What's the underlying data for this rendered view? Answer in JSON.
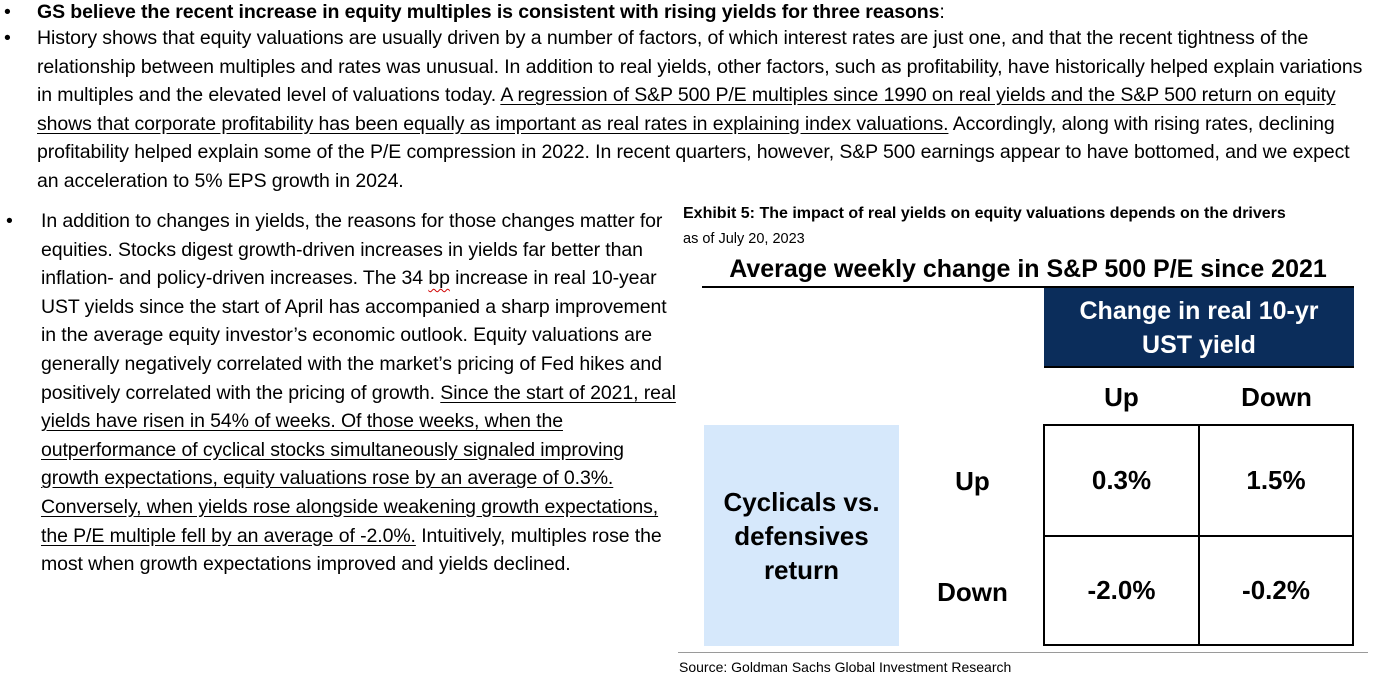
{
  "bullets": {
    "b1": {
      "symbol": "•",
      "bold": "GS believe the recent increase in equity multiples is consistent with rising yields for three reasons",
      "colon": ":"
    },
    "b2": {
      "symbol": "•",
      "p1": "History shows that equity valuations are usually driven by a number of factors, of which interest rates are just one, and that the recent tightness of the relationship between multiples and rates was unusual. In addition to real yields, other factors, such as profitability, have historically helped explain variations in multiples and the elevated level of valuations today. ",
      "u1": "A regression of S&P 500 P/E multiples since 1990 on real yields and the S&P 500 return on equity shows that corporate profitability has been equally as important as real rates in explaining index valuations.",
      "p2": " Accordingly, along with rising rates, declining profitability helped explain some of the P/E compression in 2022. In recent quarters, however, S&P 500 earnings appear to have bottomed, and we expect an acceleration to 5% EPS growth in 2024."
    },
    "b3": {
      "symbol": "•",
      "p1": "In addition to changes in yields, the reasons for those changes matter for equities. Stocks digest growth-driven increases in yields far better than inflation- and policy-driven increases. The 34 ",
      "bp": "bp",
      "p2": " increase in real 10-year UST yields since the start of April has accompanied a sharp improvement in the average equity investor’s economic outlook. Equity valuations are generally negatively correlated with the market’s pricing of Fed hikes and positively correlated with the pricing of growth. ",
      "u1": "Since the start of 2021, real yields have risen in 54% of weeks. Of those weeks, when the outperformance of cyclical stocks simultaneously signaled improving growth expectations, equity valuations rose by an average of 0.3%. Conversely, when yields rose alongside weakening growth expectations, the P/E multiple fell by an average of -2.0%.",
      "p3": " Intuitively, multiples rose the most when growth expectations improved and yields declined."
    }
  },
  "exhibit": {
    "title": "Exhibit 5: The impact of real yields on equity valuations depends on the drivers",
    "date": "as of July 20, 2023",
    "table_title": "Average weekly change in S&P 500 P/E since 2021",
    "col_header_line1": "Change in real 10-yr",
    "col_header_line2": "UST yield",
    "col_up": "Up",
    "col_down": "Down",
    "row_header_line1": "Cyclicals vs.",
    "row_header_line2": "defensives",
    "row_header_line3": "return",
    "row_up": "Up",
    "row_down": "Down",
    "values": {
      "up_up": "0.3%",
      "up_down": "1.5%",
      "down_up": "-2.0%",
      "down_down": "-0.2%"
    },
    "source": "Source: Goldman Sachs Global Investment Research",
    "colors": {
      "header_navy": "#0b2d5b",
      "row_header_bg": "#d6e8fb"
    }
  }
}
